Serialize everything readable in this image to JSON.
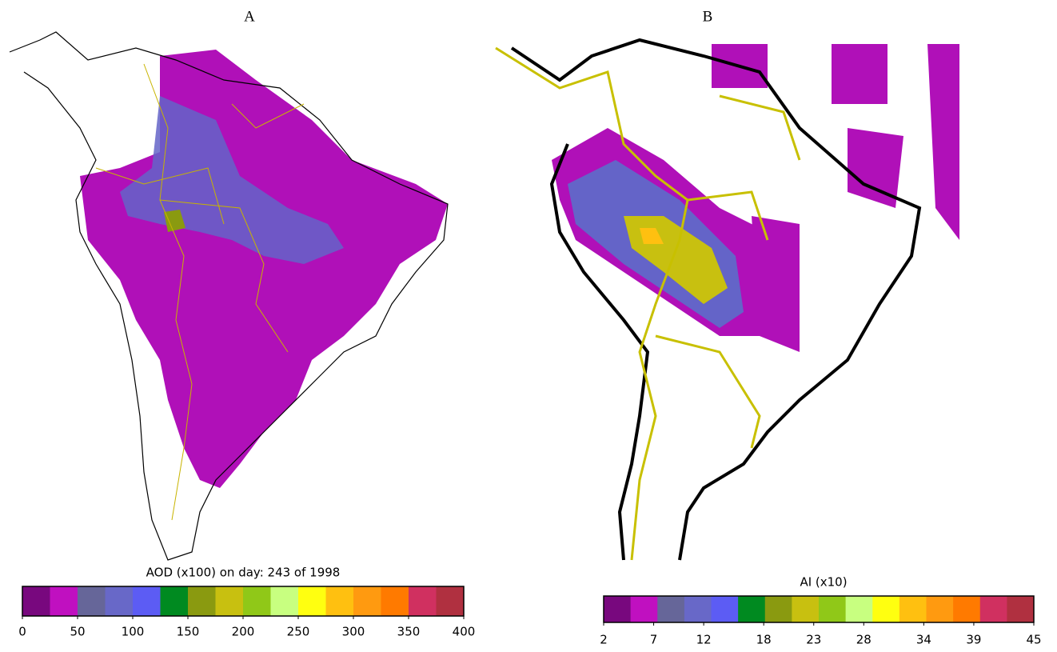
{
  "panels": [
    {
      "label": "A",
      "colorbar": {
        "title": "AOD (x100) on day: 243 of 1998",
        "range": [
          0,
          400
        ],
        "ticks": [
          0,
          50,
          100,
          150,
          200,
          250,
          300,
          350,
          400
        ],
        "colors": [
          "#78087e",
          "#c010c0",
          "#666699",
          "#6868c8",
          "#5c5cf4",
          "#008a20",
          "#8a9a10",
          "#c8c010",
          "#90c818",
          "#c8ff80",
          "#ffff10",
          "#ffc010",
          "#ff9a10",
          "#ff7a00",
          "#d03060",
          "#b03040"
        ]
      }
    },
    {
      "label": "B",
      "colorbar": {
        "title": "AI (x10)",
        "range": [
          2,
          45
        ],
        "ticks": [
          2,
          7,
          12,
          18,
          23,
          28,
          34,
          39,
          45
        ],
        "colors": [
          "#78087e",
          "#c010c0",
          "#666699",
          "#6868c8",
          "#5c5cf4",
          "#008a20",
          "#8a9a10",
          "#c8c010",
          "#90c818",
          "#c8ff80",
          "#ffff10",
          "#ffc010",
          "#ff9a10",
          "#ff7a00",
          "#d03060",
          "#b03040"
        ]
      }
    }
  ]
}
